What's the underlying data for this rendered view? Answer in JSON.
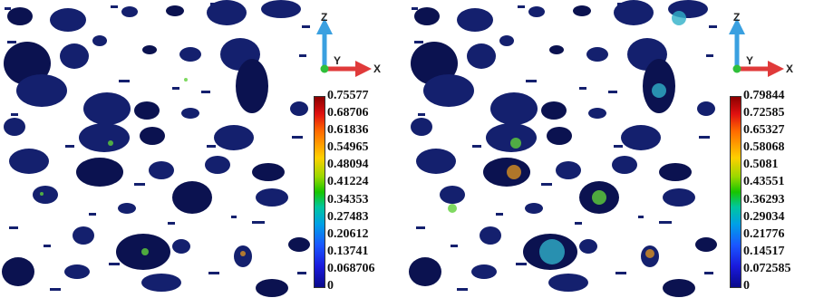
{
  "panels": [
    {
      "axes": {
        "z": "Z",
        "y": "Y",
        "x": "X"
      },
      "colorbar": {
        "ticks": [
          "0.75577",
          "0.68706",
          "0.61836",
          "0.54965",
          "0.48094",
          "0.41224",
          "0.34353",
          "0.27483",
          "0.20612",
          "0.13741",
          "0.068706",
          "0"
        ]
      }
    },
    {
      "axes": {
        "z": "Z",
        "y": "Y",
        "x": "X"
      },
      "colorbar": {
        "ticks": [
          "0.79844",
          "0.72585",
          "0.65327",
          "0.58068",
          "0.5081",
          "0.43551",
          "0.36293",
          "0.29034",
          "0.21776",
          "0.14517",
          "0.072585",
          "0"
        ]
      }
    }
  ],
  "colors": {
    "particle_base": "#14206e",
    "particle_dark": "#0b1250",
    "accent_green": "#5fcf3a",
    "accent_cyan": "#2fb0c8",
    "accent_orange": "#d89020",
    "axis_z": "#3aa0e0",
    "axis_x": "#e03a3a",
    "axis_y": "#2fbf3a"
  }
}
